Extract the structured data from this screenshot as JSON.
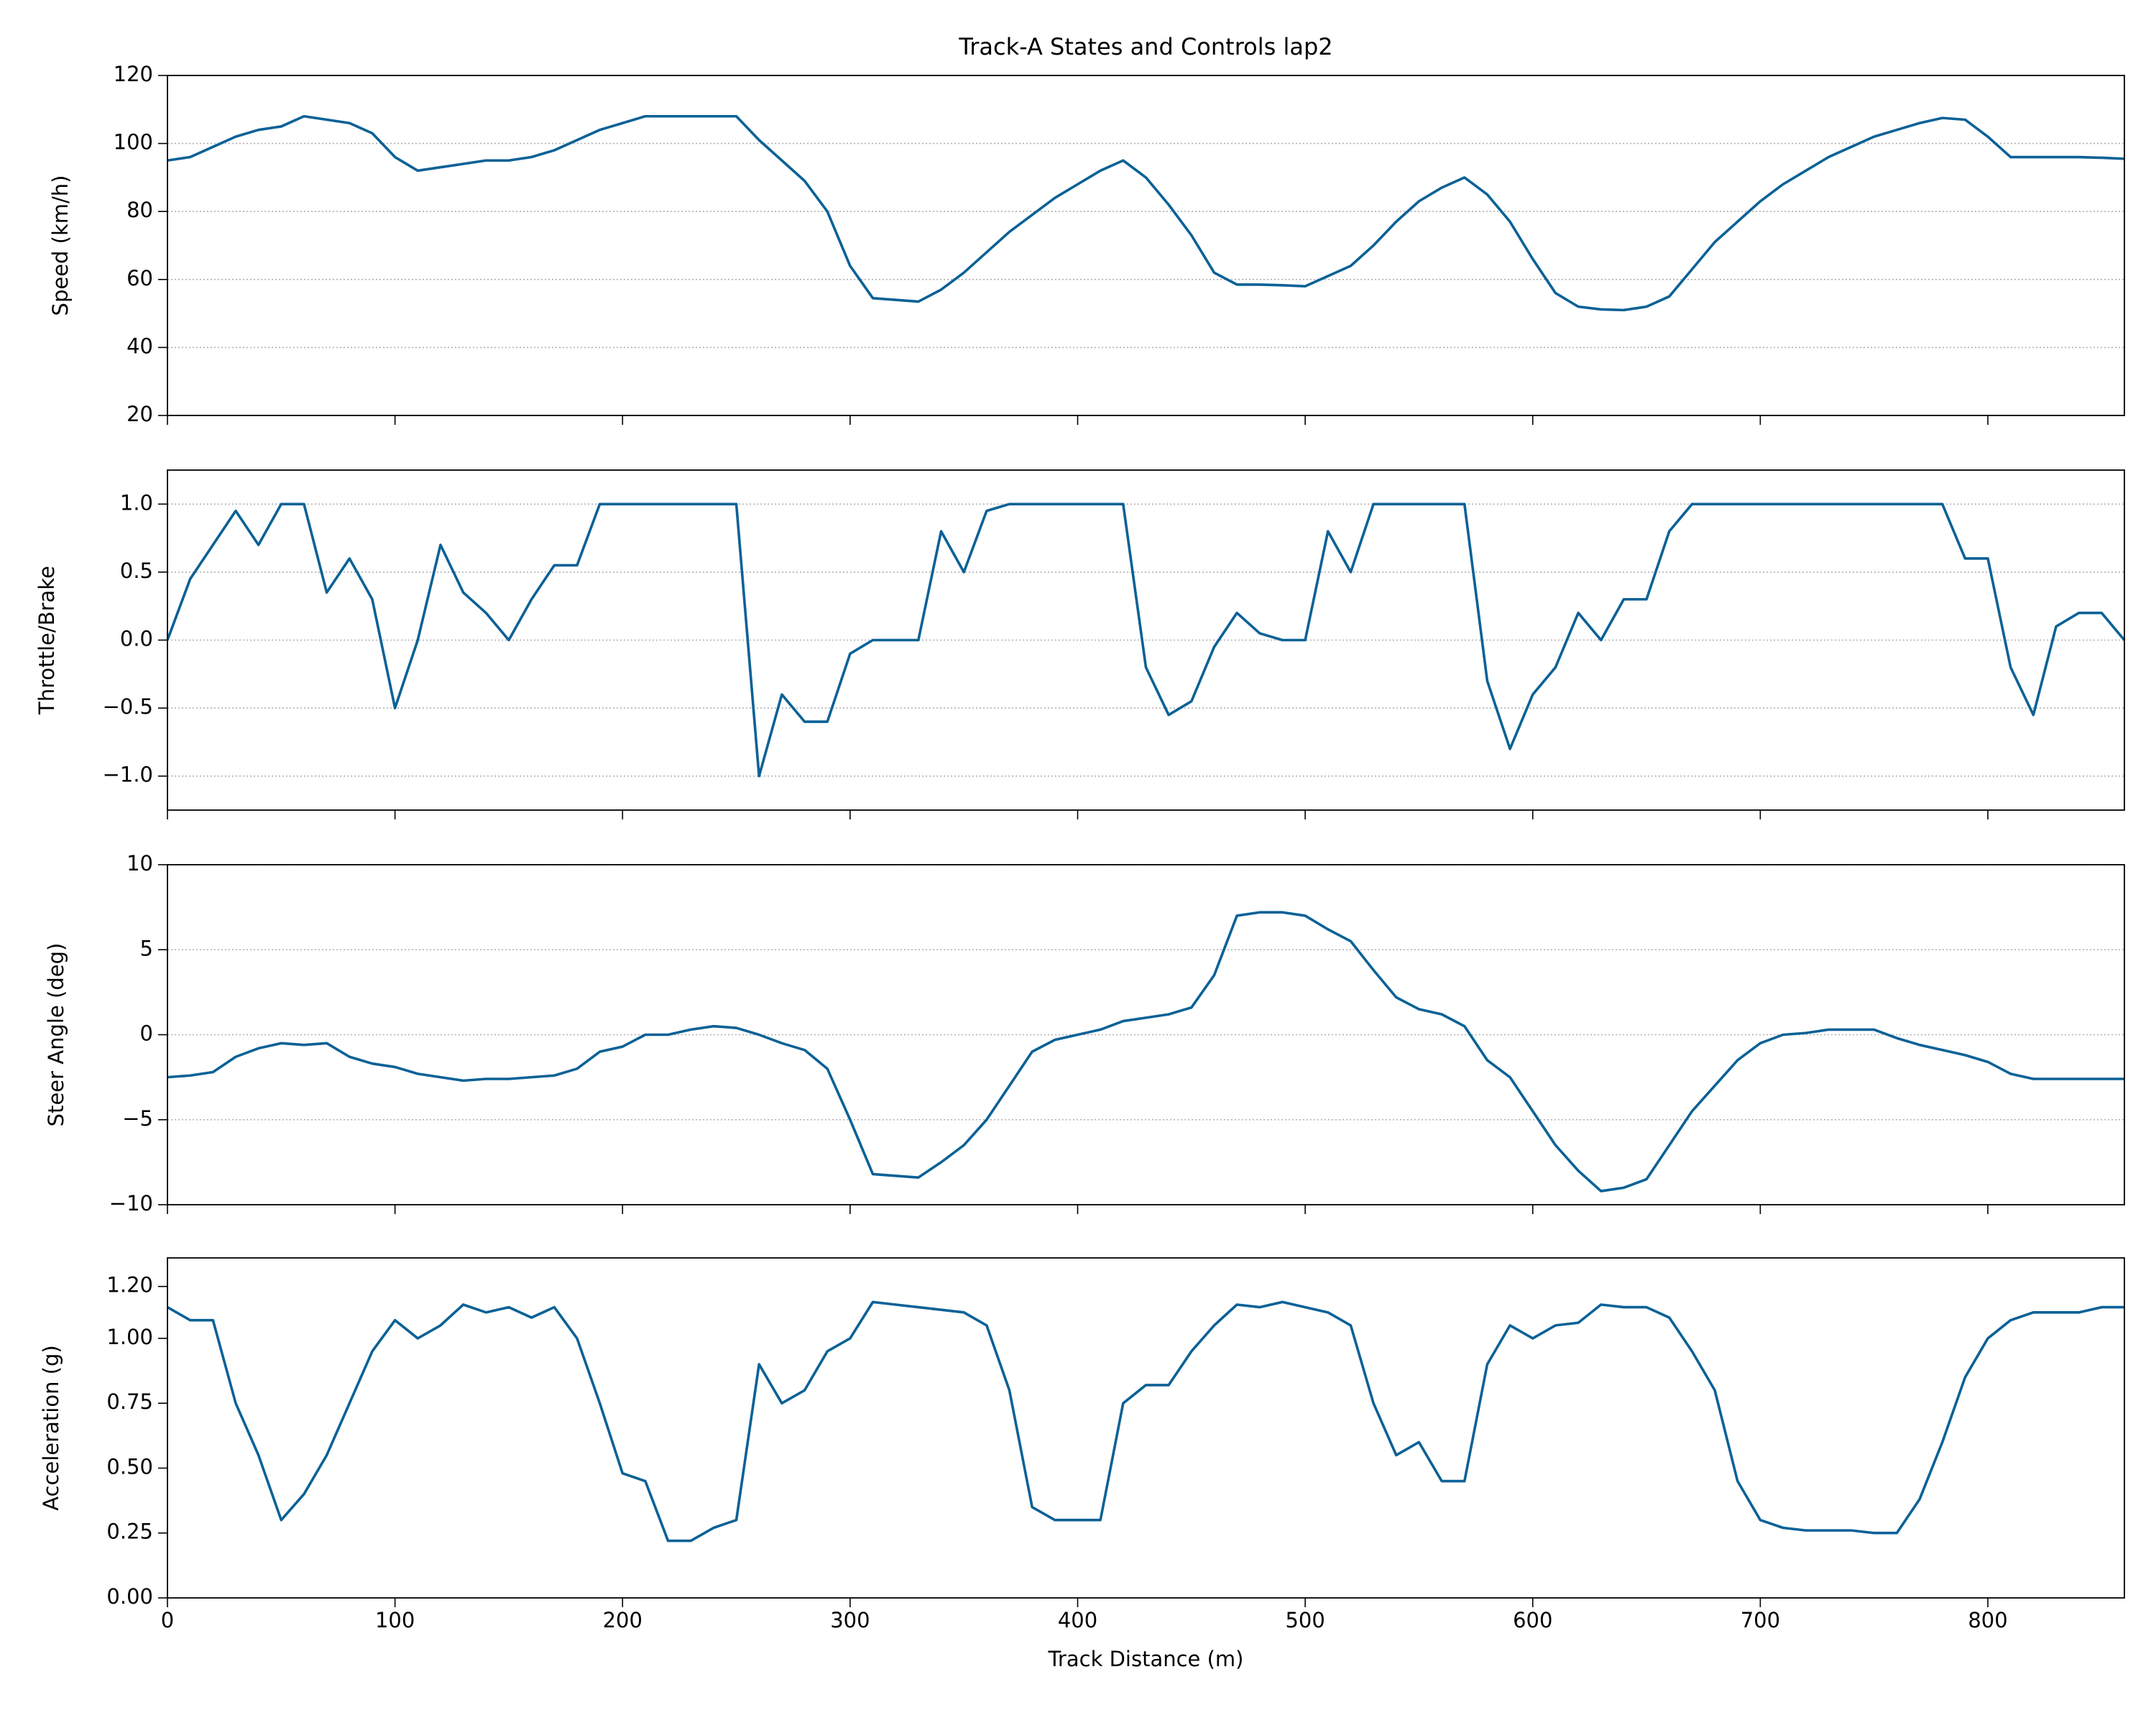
{
  "chart_data": [
    {
      "type": "line",
      "title": "Track-A States and Controls lap2",
      "ylabel": "Speed (km/h)",
      "color": "#0b6196",
      "grid": true,
      "xlim": [
        0,
        860
      ],
      "xticks": [
        0,
        100,
        200,
        300,
        400,
        500,
        600,
        700,
        800
      ],
      "ylim": [
        20,
        120
      ],
      "yticks": [
        20,
        40,
        60,
        80,
        100,
        120
      ],
      "x": [
        0,
        10,
        20,
        30,
        40,
        50,
        60,
        70,
        80,
        90,
        100,
        110,
        120,
        130,
        140,
        150,
        160,
        170,
        180,
        190,
        200,
        210,
        220,
        230,
        240,
        250,
        260,
        270,
        280,
        290,
        300,
        310,
        320,
        330,
        340,
        350,
        360,
        370,
        380,
        390,
        400,
        410,
        420,
        430,
        440,
        450,
        460,
        470,
        480,
        490,
        500,
        510,
        520,
        530,
        540,
        550,
        560,
        570,
        580,
        590,
        600,
        610,
        620,
        630,
        640,
        650,
        660,
        670,
        680,
        690,
        700,
        710,
        720,
        730,
        740,
        750,
        760,
        770,
        780,
        790,
        800,
        810,
        820,
        830,
        840,
        850,
        860
      ],
      "values": [
        95,
        96,
        99,
        102,
        104,
        105,
        108,
        107,
        106,
        103,
        96,
        92,
        93,
        94,
        95,
        95,
        96,
        98,
        101,
        104,
        106,
        108,
        108,
        108,
        108,
        108,
        101,
        95,
        89,
        80,
        64,
        54.5,
        54,
        53.5,
        57,
        62,
        68,
        74,
        79,
        84,
        88,
        92,
        95,
        90,
        82,
        73,
        62,
        58.5,
        58.5,
        58.3,
        58,
        61,
        64,
        70,
        77,
        83,
        87,
        90,
        85,
        77,
        66,
        56,
        52,
        51.2,
        51,
        52,
        55,
        63,
        71,
        77,
        83,
        88,
        92,
        96,
        99,
        102,
        104,
        106,
        107.5,
        107,
        102,
        96,
        96,
        96,
        96,
        95.8,
        95.5
      ]
    },
    {
      "type": "line",
      "ylabel": "Throttle/Brake",
      "color": "#0b6196",
      "grid": true,
      "xlim": [
        0,
        860
      ],
      "xticks": [
        0,
        100,
        200,
        300,
        400,
        500,
        600,
        700,
        800
      ],
      "ylim": [
        -1.25,
        1.25
      ],
      "yticks": [
        {
          "value": -1,
          "label": "−1.0"
        },
        {
          "value": -0.5,
          "label": "−0.5"
        },
        {
          "value": 0,
          "label": "0.0"
        },
        0.5,
        {
          "value": 1,
          "label": "1.0"
        }
      ],
      "x": [
        0,
        10,
        20,
        30,
        40,
        50,
        60,
        70,
        80,
        90,
        100,
        110,
        120,
        130,
        140,
        150,
        160,
        170,
        180,
        190,
        200,
        210,
        220,
        230,
        240,
        250,
        260,
        270,
        280,
        290,
        300,
        310,
        320,
        330,
        340,
        350,
        360,
        370,
        380,
        390,
        400,
        410,
        420,
        430,
        440,
        450,
        460,
        470,
        480,
        490,
        500,
        510,
        520,
        530,
        540,
        550,
        560,
        570,
        580,
        590,
        600,
        610,
        620,
        630,
        640,
        650,
        660,
        670,
        680,
        690,
        700,
        710,
        720,
        730,
        740,
        750,
        760,
        770,
        780,
        790,
        800,
        810,
        820,
        830,
        840,
        850,
        860
      ],
      "values": [
        0,
        0.45,
        0.7,
        0.95,
        0.7,
        1,
        1,
        0.35,
        0.6,
        0.3,
        -0.5,
        0,
        0.7,
        0.35,
        0.2,
        0,
        0.3,
        0.55,
        0.55,
        1,
        1,
        1,
        1,
        1,
        1,
        1,
        -1,
        -0.4,
        -0.6,
        -0.6,
        -0.1,
        0,
        0,
        0,
        0.8,
        0.5,
        0.95,
        1,
        1,
        1,
        1,
        1,
        1,
        -0.2,
        -0.55,
        -0.45,
        -0.05,
        0.2,
        0.05,
        0,
        0,
        0.8,
        0.5,
        1,
        1,
        1,
        1,
        1,
        -0.3,
        -0.8,
        -0.4,
        -0.2,
        0.2,
        0,
        0.3,
        0.3,
        0.8,
        1,
        1,
        1,
        1,
        1,
        1,
        1,
        1,
        1,
        1,
        1,
        1,
        0.6,
        0.6,
        -0.2,
        -0.55,
        0.1,
        0.2,
        0.2,
        0
      ]
    },
    {
      "type": "line",
      "ylabel": "Steer Angle (deg)",
      "color": "#0b6196",
      "grid": true,
      "xlim": [
        0,
        860
      ],
      "xticks": [
        0,
        100,
        200,
        300,
        400,
        500,
        600,
        700,
        800
      ],
      "ylim": [
        -10,
        10
      ],
      "yticks": [
        {
          "value": -10,
          "label": "−10"
        },
        {
          "value": -5,
          "label": "−5"
        },
        0,
        5,
        10
      ],
      "x": [
        0,
        10,
        20,
        30,
        40,
        50,
        60,
        70,
        80,
        90,
        100,
        110,
        120,
        130,
        140,
        150,
        160,
        170,
        180,
        190,
        200,
        210,
        220,
        230,
        240,
        250,
        260,
        270,
        280,
        290,
        300,
        310,
        320,
        330,
        340,
        350,
        360,
        370,
        380,
        390,
        400,
        410,
        420,
        430,
        440,
        450,
        460,
        470,
        480,
        490,
        500,
        510,
        520,
        530,
        540,
        550,
        560,
        570,
        580,
        590,
        600,
        610,
        620,
        630,
        640,
        650,
        660,
        670,
        680,
        690,
        700,
        710,
        720,
        730,
        740,
        750,
        760,
        770,
        780,
        790,
        800,
        810,
        820,
        830,
        840,
        850,
        860
      ],
      "values": [
        -2.5,
        -2.4,
        -2.2,
        -1.3,
        -0.8,
        -0.5,
        -0.6,
        -0.5,
        -1.3,
        -1.7,
        -1.9,
        -2.3,
        -2.5,
        -2.7,
        -2.6,
        -2.6,
        -2.5,
        -2.4,
        -2,
        -1,
        -0.7,
        0,
        0,
        0.3,
        0.5,
        0.4,
        0,
        -0.5,
        -0.9,
        -2,
        -5,
        -8.2,
        -8.3,
        -8.4,
        -7.5,
        -6.5,
        -5,
        -3,
        -1,
        -0.3,
        0,
        0.3,
        0.8,
        1,
        1.2,
        1.6,
        3.5,
        7,
        7.2,
        7.2,
        7,
        6.2,
        5.5,
        3.8,
        2.2,
        1.5,
        1.2,
        0.5,
        -1.5,
        -2.5,
        -4.5,
        -6.5,
        -8,
        -9.2,
        -9,
        -8.5,
        -6.5,
        -4.5,
        -3,
        -1.5,
        -0.5,
        0,
        0.1,
        0.3,
        0.3,
        0.3,
        -0.2,
        -0.6,
        -0.9,
        -1.2,
        -1.6,
        -2.3,
        -2.6,
        -2.6,
        -2.6,
        -2.6,
        -2.6
      ]
    },
    {
      "type": "line",
      "ylabel": "Acceleration (g)",
      "xlabel": "Track Distance (m)",
      "color": "#0b6196",
      "grid": false,
      "xlim": [
        0,
        860
      ],
      "xticks": [
        0,
        100,
        200,
        300,
        400,
        500,
        600,
        700,
        800
      ],
      "ylim": [
        0,
        1.31
      ],
      "yticks": [
        {
          "value": 0,
          "label": "0.00"
        },
        0.25,
        {
          "value": 0.5,
          "label": "0.50"
        },
        0.75,
        {
          "value": 1,
          "label": "1.00"
        },
        {
          "value": 1.2,
          "label": "1.20"
        }
      ],
      "x": [
        0,
        10,
        20,
        30,
        40,
        50,
        60,
        70,
        80,
        90,
        100,
        110,
        120,
        130,
        140,
        150,
        160,
        170,
        180,
        190,
        200,
        210,
        220,
        230,
        240,
        250,
        260,
        270,
        280,
        290,
        300,
        310,
        320,
        330,
        340,
        350,
        360,
        370,
        380,
        390,
        400,
        410,
        420,
        430,
        440,
        450,
        460,
        470,
        480,
        490,
        500,
        510,
        520,
        530,
        540,
        550,
        560,
        570,
        580,
        590,
        600,
        610,
        620,
        630,
        640,
        650,
        660,
        670,
        680,
        690,
        700,
        710,
        720,
        730,
        740,
        750,
        760,
        770,
        780,
        790,
        800,
        810,
        820,
        830,
        840,
        850,
        860
      ],
      "values": [
        1.12,
        1.07,
        1.07,
        0.75,
        0.55,
        0.3,
        0.4,
        0.55,
        0.75,
        0.95,
        1.07,
        1,
        1.05,
        1.13,
        1.1,
        1.12,
        1.08,
        1.12,
        1,
        0.75,
        0.48,
        0.45,
        0.22,
        0.22,
        0.27,
        0.3,
        0.9,
        0.75,
        0.8,
        0.95,
        1,
        1.14,
        1.13,
        1.12,
        1.11,
        1.1,
        1.05,
        0.8,
        0.35,
        0.3,
        0.3,
        0.3,
        0.75,
        0.82,
        0.82,
        0.95,
        1.05,
        1.13,
        1.12,
        1.14,
        1.12,
        1.1,
        1.05,
        0.75,
        0.55,
        0.6,
        0.45,
        0.45,
        0.9,
        1.05,
        1,
        1.05,
        1.06,
        1.13,
        1.12,
        1.12,
        1.08,
        0.95,
        0.8,
        0.45,
        0.3,
        0.27,
        0.26,
        0.26,
        0.26,
        0.25,
        0.25,
        0.38,
        0.6,
        0.85,
        1,
        1.07,
        1.1,
        1.1,
        1.1,
        1.12,
        1.12
      ]
    }
  ]
}
